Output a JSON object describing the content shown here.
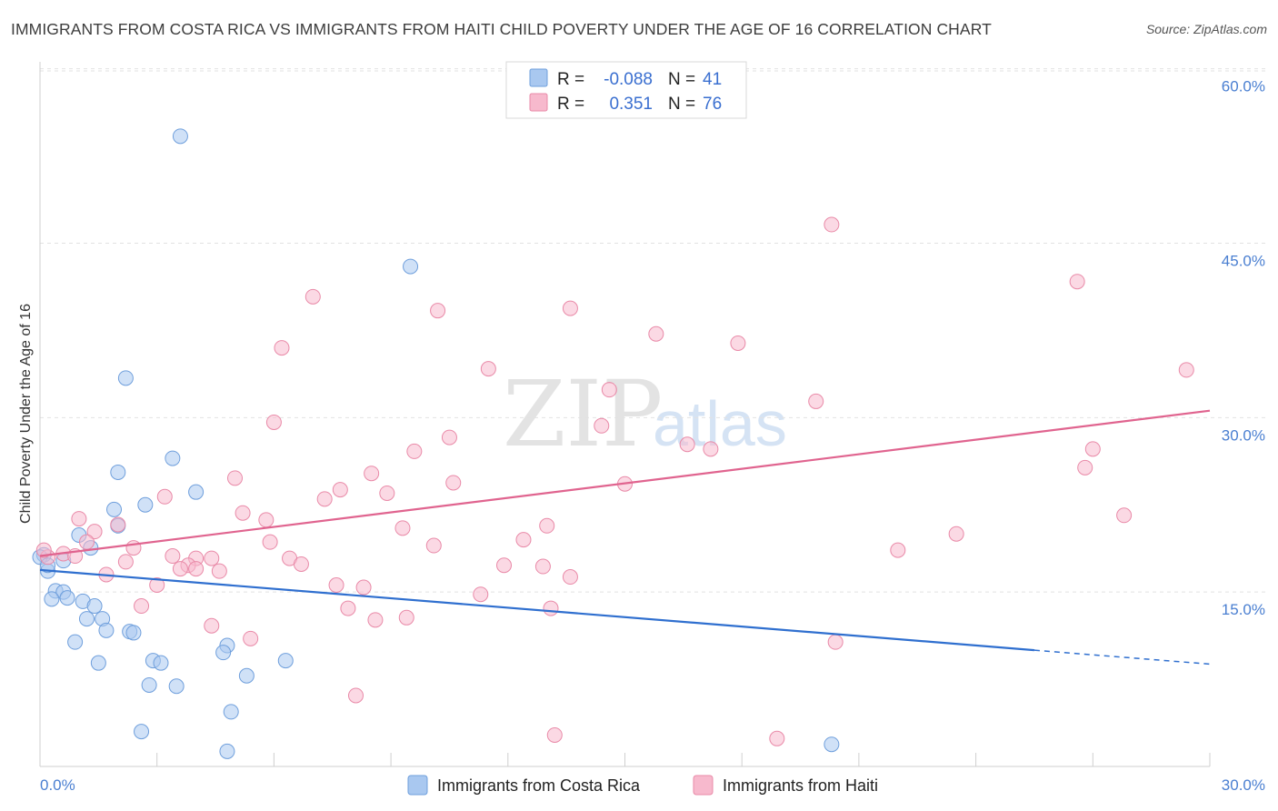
{
  "header": {
    "title": "IMMIGRANTS FROM COSTA RICA VS IMMIGRANTS FROM HAITI CHILD POVERTY UNDER THE AGE OF 16 CORRELATION CHART",
    "source": "Source: ZipAtlas.com"
  },
  "watermark": {
    "zip": "ZIP",
    "atlas": "atlas"
  },
  "legend": {
    "r_label": "R =",
    "n_label": "N =",
    "rows": [
      {
        "r_value": "-0.088",
        "n_value": "41",
        "color": "#a9c8f0"
      },
      {
        "r_value": "0.351",
        "n_value": "76",
        "color": "#f7b9cd"
      }
    ]
  },
  "chart_data": {
    "type": "scatter",
    "title": "IMMIGRANTS FROM COSTA RICA VS IMMIGRANTS FROM HAITI CHILD POVERTY UNDER THE AGE OF 16 CORRELATION CHART",
    "xlabel": "",
    "ylabel": "Child Poverty Under the Age of 16",
    "xlim": [
      0,
      30
    ],
    "ylim": [
      0,
      60.6
    ],
    "y_ticks": [
      15,
      30,
      45,
      60
    ],
    "y_tick_labels": [
      "15.0%",
      "30.0%",
      "45.0%",
      "60.0%"
    ],
    "x_tick_labels": [
      "0.0%",
      "30.0%"
    ],
    "grid": true,
    "series": [
      {
        "name": "Immigrants from Costa Rica",
        "color": "#a9c8f0",
        "stroke": "#6f9fdc",
        "line_color": "#2f6fcf",
        "trend": {
          "x0": 0,
          "y0": 16.9,
          "x1": 25.5,
          "y1": 10.0,
          "dash_to": 30,
          "dash_y": 8.8
        },
        "points": [
          [
            3.6,
            54.2
          ],
          [
            9.5,
            43.0
          ],
          [
            2.2,
            33.4
          ],
          [
            3.4,
            26.5
          ],
          [
            2.0,
            25.3
          ],
          [
            4.0,
            23.6
          ],
          [
            2.7,
            22.5
          ],
          [
            1.9,
            22.1
          ],
          [
            2.0,
            20.7
          ],
          [
            1.0,
            19.9
          ],
          [
            1.3,
            18.8
          ],
          [
            0.6,
            17.7
          ],
          [
            0.1,
            18.2
          ],
          [
            0.2,
            16.8
          ],
          [
            0.4,
            15.1
          ],
          [
            0.6,
            15.0
          ],
          [
            0.3,
            14.4
          ],
          [
            0.7,
            14.5
          ],
          [
            1.1,
            14.2
          ],
          [
            1.4,
            13.8
          ],
          [
            1.2,
            12.7
          ],
          [
            1.6,
            12.7
          ],
          [
            1.7,
            11.7
          ],
          [
            2.3,
            11.6
          ],
          [
            2.4,
            11.5
          ],
          [
            0.9,
            10.7
          ],
          [
            4.8,
            10.4
          ],
          [
            4.7,
            9.8
          ],
          [
            2.9,
            9.1
          ],
          [
            3.1,
            8.9
          ],
          [
            1.5,
            8.9
          ],
          [
            6.3,
            9.1
          ],
          [
            5.3,
            7.8
          ],
          [
            2.8,
            7.0
          ],
          [
            3.5,
            6.9
          ],
          [
            4.9,
            4.7
          ],
          [
            2.6,
            3.0
          ],
          [
            4.8,
            1.3
          ],
          [
            20.3,
            1.9
          ],
          [
            0.0,
            18.0
          ],
          [
            0.2,
            17.3
          ]
        ]
      },
      {
        "name": "Immigrants from Haiti",
        "color": "#f7b9cd",
        "stroke": "#e98aa8",
        "line_color": "#e0648f",
        "trend": {
          "x0": 0,
          "y0": 18.1,
          "x1": 30,
          "y1": 30.6
        },
        "points": [
          [
            20.3,
            46.6
          ],
          [
            26.6,
            41.7
          ],
          [
            7.0,
            40.4
          ],
          [
            13.6,
            39.4
          ],
          [
            10.2,
            39.2
          ],
          [
            15.8,
            37.2
          ],
          [
            17.9,
            36.4
          ],
          [
            6.2,
            36.0
          ],
          [
            11.5,
            34.2
          ],
          [
            29.4,
            34.1
          ],
          [
            14.6,
            32.4
          ],
          [
            19.9,
            31.4
          ],
          [
            6.0,
            29.6
          ],
          [
            14.4,
            29.3
          ],
          [
            10.5,
            28.3
          ],
          [
            16.6,
            27.7
          ],
          [
            17.2,
            27.3
          ],
          [
            9.6,
            27.1
          ],
          [
            27.0,
            27.3
          ],
          [
            26.8,
            25.7
          ],
          [
            8.5,
            25.2
          ],
          [
            5.0,
            24.8
          ],
          [
            10.6,
            24.4
          ],
          [
            15.0,
            24.3
          ],
          [
            7.7,
            23.8
          ],
          [
            8.9,
            23.5
          ],
          [
            3.2,
            23.2
          ],
          [
            7.3,
            23.0
          ],
          [
            5.2,
            21.8
          ],
          [
            5.8,
            21.2
          ],
          [
            27.8,
            21.6
          ],
          [
            1.0,
            21.3
          ],
          [
            13.0,
            20.7
          ],
          [
            2.0,
            20.8
          ],
          [
            9.3,
            20.5
          ],
          [
            23.5,
            20.0
          ],
          [
            12.4,
            19.5
          ],
          [
            1.4,
            20.2
          ],
          [
            1.2,
            19.3
          ],
          [
            5.9,
            19.3
          ],
          [
            10.1,
            19.0
          ],
          [
            2.4,
            18.8
          ],
          [
            22.0,
            18.6
          ],
          [
            3.4,
            18.1
          ],
          [
            0.2,
            18.0
          ],
          [
            0.6,
            18.3
          ],
          [
            0.9,
            18.1
          ],
          [
            4.0,
            17.9
          ],
          [
            4.4,
            17.9
          ],
          [
            6.4,
            17.9
          ],
          [
            6.7,
            17.4
          ],
          [
            2.2,
            17.6
          ],
          [
            3.8,
            17.3
          ],
          [
            4.0,
            17.0
          ],
          [
            11.9,
            17.3
          ],
          [
            3.6,
            17.0
          ],
          [
            4.6,
            16.8
          ],
          [
            12.9,
            17.2
          ],
          [
            1.7,
            16.5
          ],
          [
            13.6,
            16.3
          ],
          [
            3.0,
            15.6
          ],
          [
            7.6,
            15.6
          ],
          [
            8.3,
            15.4
          ],
          [
            11.3,
            14.8
          ],
          [
            2.6,
            13.8
          ],
          [
            7.9,
            13.6
          ],
          [
            13.1,
            13.6
          ],
          [
            8.6,
            12.6
          ],
          [
            9.4,
            12.8
          ],
          [
            4.4,
            12.1
          ],
          [
            5.4,
            11.0
          ],
          [
            20.4,
            10.7
          ],
          [
            8.1,
            6.1
          ],
          [
            13.2,
            2.7
          ],
          [
            18.9,
            2.4
          ],
          [
            0.1,
            18.6
          ]
        ]
      }
    ]
  },
  "bottom_legend": {
    "items": [
      {
        "label": "Immigrants from Costa Rica",
        "color": "#a9c8f0",
        "stroke": "#6f9fdc"
      },
      {
        "label": "Immigrants from Haiti",
        "color": "#f7b9cd",
        "stroke": "#e98aa8"
      }
    ]
  }
}
